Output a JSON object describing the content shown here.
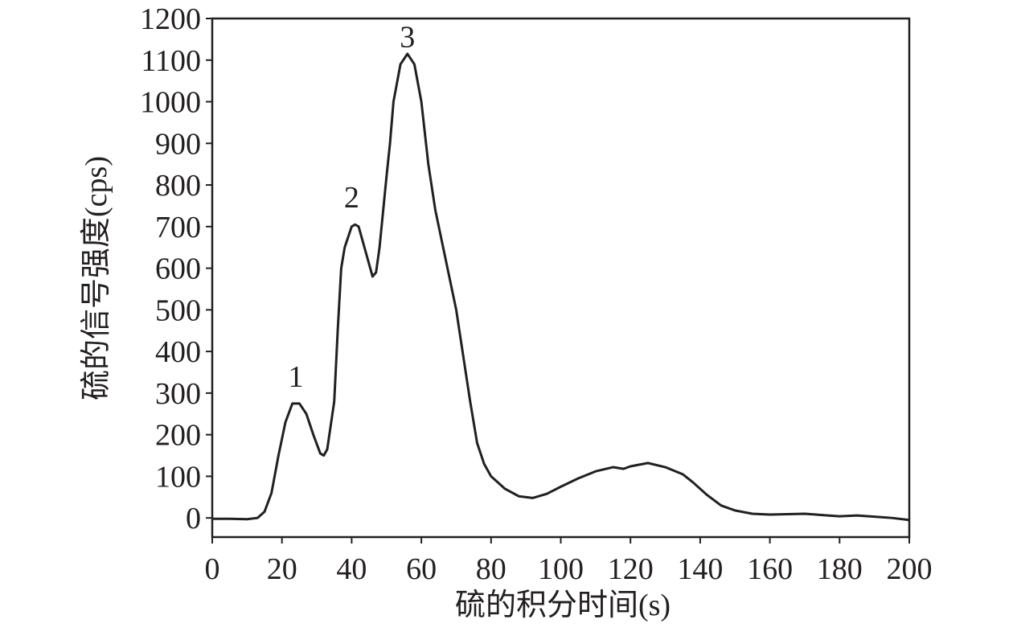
{
  "chart_data": {
    "type": "line",
    "xlabel": "硫的积分时间(s)",
    "ylabel": "硫的信号强度(cps)",
    "xlim": [
      0,
      200
    ],
    "ylim": [
      -46,
      1200
    ],
    "xticks": [
      0,
      20,
      40,
      60,
      80,
      100,
      120,
      140,
      160,
      180,
      200
    ],
    "yticks": [
      0,
      100,
      200,
      300,
      400,
      500,
      600,
      700,
      800,
      900,
      1000,
      1100,
      1200
    ],
    "x": [
      0,
      5,
      10,
      13,
      15,
      17,
      19,
      21,
      23,
      25,
      27,
      29,
      31,
      32,
      33,
      35,
      36,
      37,
      38,
      40,
      41,
      42,
      44,
      46,
      47,
      48,
      50,
      51,
      52,
      54,
      56,
      58,
      60,
      62,
      64,
      66,
      68,
      70,
      72,
      74,
      76,
      78,
      80,
      84,
      88,
      92,
      96,
      100,
      105,
      110,
      115,
      118,
      120,
      125,
      130,
      135,
      138,
      142,
      146,
      150,
      155,
      160,
      170,
      180,
      185,
      190,
      195,
      200
    ],
    "series": [
      {
        "color": "#231f20",
        "values": [
          -2,
          -2,
          -3,
          0,
          15,
          60,
          150,
          230,
          275,
          275,
          250,
          200,
          155,
          150,
          165,
          280,
          450,
          600,
          650,
          700,
          705,
          700,
          640,
          580,
          590,
          650,
          820,
          900,
          1000,
          1090,
          1115,
          1090,
          1000,
          850,
          740,
          660,
          580,
          500,
          390,
          280,
          180,
          130,
          100,
          70,
          52,
          48,
          58,
          75,
          95,
          112,
          122,
          118,
          124,
          132,
          122,
          105,
          85,
          55,
          30,
          18,
          10,
          8,
          10,
          4,
          6,
          3,
          0,
          -5
        ]
      }
    ],
    "annotations": [
      {
        "text": "1",
        "x": 24,
        "y": 340
      },
      {
        "text": "2",
        "x": 40,
        "y": 771
      },
      {
        "text": "3",
        "x": 56,
        "y": 1157
      }
    ]
  }
}
